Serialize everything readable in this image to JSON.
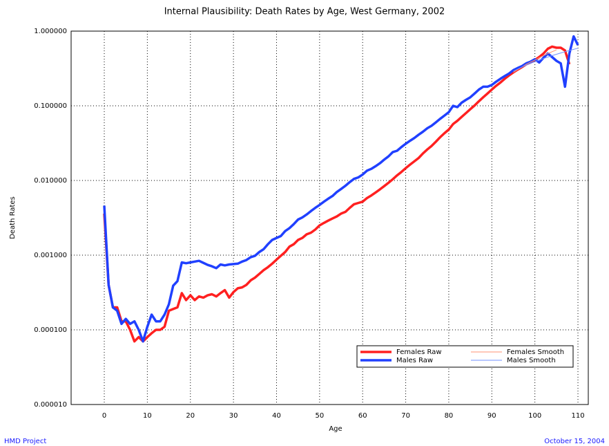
{
  "chart_data": {
    "type": "line",
    "title": "Internal Plausibility: Death Rates by Age, West Germany, 2002",
    "xlabel": "Age",
    "ylabel": "Death Rates",
    "log_y": true,
    "grid": true,
    "legend": "lower right",
    "xlim": [
      -7.7,
      112.4
    ],
    "ylim": [
      1e-05,
      1
    ],
    "xticks": [
      0,
      10,
      20,
      30,
      40,
      50,
      60,
      70,
      80,
      90,
      100,
      110
    ],
    "yticks": [
      {
        "value": 1e-05,
        "label": "0.000010"
      },
      {
        "value": 0.0001,
        "label": "0.000100"
      },
      {
        "value": 0.001,
        "label": "0.001000"
      },
      {
        "value": 0.01,
        "label": "0.010000"
      },
      {
        "value": 0.1,
        "label": "0.100000"
      },
      {
        "value": 1,
        "label": "1.000000"
      }
    ],
    "x": [
      0,
      1,
      2,
      3,
      4,
      5,
      6,
      7,
      8,
      9,
      10,
      11,
      12,
      13,
      14,
      15,
      16,
      17,
      18,
      19,
      20,
      21,
      22,
      23,
      24,
      25,
      26,
      27,
      28,
      29,
      30,
      31,
      32,
      33,
      34,
      35,
      36,
      37,
      38,
      39,
      40,
      41,
      42,
      43,
      44,
      45,
      46,
      47,
      48,
      49,
      50,
      51,
      52,
      53,
      54,
      55,
      56,
      57,
      58,
      59,
      60,
      61,
      62,
      63,
      64,
      65,
      66,
      67,
      68,
      69,
      70,
      71,
      72,
      73,
      74,
      75,
      76,
      77,
      78,
      79,
      80,
      81,
      82,
      83,
      84,
      85,
      86,
      87,
      88,
      89,
      90,
      91,
      92,
      93,
      94,
      95,
      96,
      97,
      98,
      99,
      100,
      101,
      102,
      103,
      104,
      105,
      106,
      107,
      108,
      109,
      110
    ],
    "series": [
      {
        "name": "Females Raw",
        "color": "#ff2020",
        "line_width": 3.5,
        "values": [
          0.0036,
          0.0004,
          0.0002,
          0.0002,
          0.00013,
          0.00013,
          0.0001,
          7e-05,
          8e-05,
          7e-05,
          8e-05,
          9e-05,
          0.0001,
          0.0001,
          0.00011,
          0.00018,
          0.00019,
          0.0002,
          0.00031,
          0.00025,
          0.00029,
          0.00025,
          0.00028,
          0.00027,
          0.00029,
          0.0003,
          0.00028,
          0.00031,
          0.00034,
          0.00027,
          0.00032,
          0.00036,
          0.00037,
          0.0004,
          0.00046,
          0.0005,
          0.00056,
          0.00063,
          0.00069,
          0.00077,
          0.00087,
          0.00098,
          0.0011,
          0.0013,
          0.0014,
          0.0016,
          0.0017,
          0.0019,
          0.002,
          0.0022,
          0.0025,
          0.0027,
          0.0029,
          0.0031,
          0.0033,
          0.0036,
          0.0038,
          0.0043,
          0.0048,
          0.005,
          0.0052,
          0.0058,
          0.0063,
          0.0069,
          0.0076,
          0.0084,
          0.0093,
          0.0104,
          0.0117,
          0.013,
          0.0146,
          0.0163,
          0.018,
          0.02,
          0.023,
          0.026,
          0.029,
          0.033,
          0.038,
          0.043,
          0.048,
          0.057,
          0.063,
          0.071,
          0.08,
          0.09,
          0.101,
          0.115,
          0.13,
          0.146,
          0.165,
          0.185,
          0.205,
          0.23,
          0.255,
          0.28,
          0.305,
          0.33,
          0.36,
          0.38,
          0.41,
          0.45,
          0.5,
          0.58,
          0.62,
          0.6,
          0.6,
          0.55,
          0.36,
          null,
          null
        ]
      },
      {
        "name": "Males Raw",
        "color": "#2040ff",
        "line_width": 3.5,
        "values": [
          0.0046,
          0.0004,
          0.0002,
          0.00018,
          0.00012,
          0.00014,
          0.00012,
          0.00013,
          0.0001,
          7e-05,
          0.00011,
          0.00016,
          0.00013,
          0.00013,
          0.00016,
          0.00022,
          0.00039,
          0.00045,
          0.0008,
          0.00078,
          0.0008,
          0.00082,
          0.00084,
          0.00079,
          0.00074,
          0.00071,
          0.00067,
          0.00075,
          0.00073,
          0.00075,
          0.00076,
          0.00077,
          0.00082,
          0.00086,
          0.00094,
          0.00098,
          0.0011,
          0.0012,
          0.0014,
          0.0016,
          0.0017,
          0.0018,
          0.0021,
          0.0023,
          0.0026,
          0.003,
          0.0032,
          0.0035,
          0.0039,
          0.0043,
          0.0047,
          0.0052,
          0.0057,
          0.0062,
          0.007,
          0.0077,
          0.0085,
          0.0095,
          0.0105,
          0.011,
          0.012,
          0.0135,
          0.0143,
          0.0155,
          0.017,
          0.019,
          0.021,
          0.024,
          0.025,
          0.028,
          0.031,
          0.034,
          0.037,
          0.041,
          0.045,
          0.05,
          0.054,
          0.06,
          0.067,
          0.074,
          0.082,
          0.1,
          0.096,
          0.11,
          0.12,
          0.13,
          0.146,
          0.165,
          0.18,
          0.18,
          0.19,
          0.21,
          0.23,
          0.25,
          0.27,
          0.3,
          0.32,
          0.34,
          0.37,
          0.39,
          0.42,
          0.38,
          0.44,
          0.5,
          0.45,
          0.4,
          0.37,
          0.18,
          0.5,
          0.85,
          0.65
        ]
      },
      {
        "name": "Females Smooth",
        "color": "#ff9070",
        "line_width": 1,
        "x": [
          95,
          96,
          97,
          98,
          99,
          100,
          101,
          102,
          103,
          104,
          105
        ],
        "values": [
          0.28,
          0.305,
          0.33,
          0.36,
          0.385,
          0.41,
          0.44,
          0.47,
          0.5,
          0.53,
          0.56
        ]
      },
      {
        "name": "Males Smooth",
        "color": "#7090ff",
        "line_width": 1,
        "x": [
          95,
          96,
          97,
          98,
          99,
          100,
          101,
          102,
          103,
          104,
          105,
          106,
          107,
          108,
          109,
          110
        ],
        "values": [
          0.29,
          0.31,
          0.33,
          0.35,
          0.37,
          0.39,
          0.41,
          0.43,
          0.45,
          0.47,
          0.49,
          0.51,
          0.53,
          0.55,
          0.57,
          0.59
        ]
      }
    ]
  },
  "footer": {
    "left": "HMD Project",
    "right": "October 15, 2004"
  }
}
